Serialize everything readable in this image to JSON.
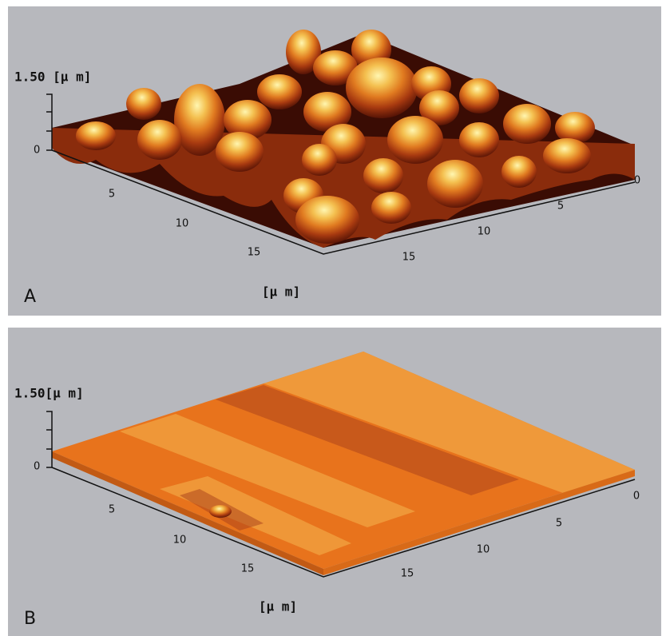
{
  "panels": [
    {
      "label": "A",
      "z_max_label": "1.50 [μ m]",
      "z_zero_label": "0",
      "left_axis_ticks": [
        "5",
        "10",
        "15"
      ],
      "right_axis_ticks": [
        "15",
        "10",
        "5",
        "0"
      ],
      "unit": "[μ m]"
    },
    {
      "label": "B",
      "z_max_label": "1.50[μ m]",
      "z_zero_label": "0",
      "left_axis_ticks": [
        "5",
        "10",
        "15"
      ],
      "right_axis_ticks": [
        "15",
        "10",
        "5",
        "0"
      ],
      "unit": "[μ m]"
    }
  ]
}
